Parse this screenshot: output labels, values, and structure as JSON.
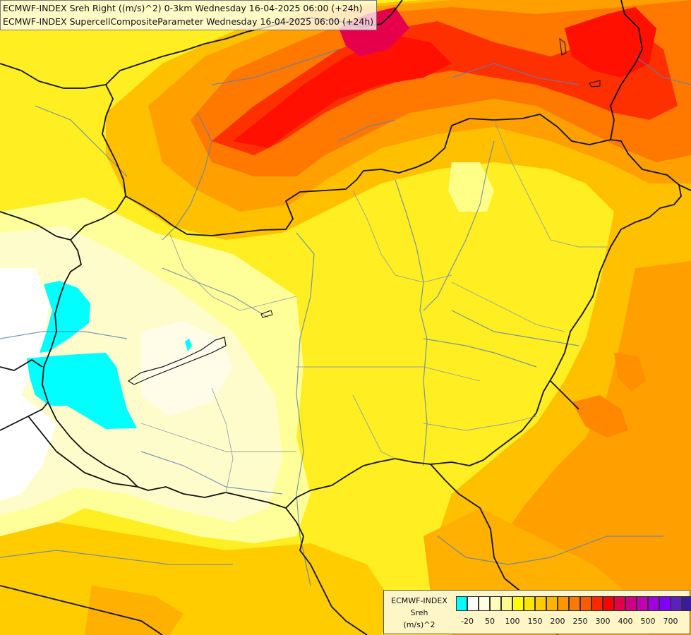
{
  "header": {
    "line1": "ECMWF-INDEX Sreh Right ((m/s)^2) 0-3km Wednesday 16-04-2025 06:00 (+24h)",
    "line2": "ECMWF-INDEX SupercellCompositeParameter Wednesday 16-04-2025 06:00 (+24h)"
  },
  "legend": {
    "model": "ECMWF-INDEX",
    "variable": "Sreh",
    "unit": "(m/s)^2",
    "colors": [
      "#00ffff",
      "#ffffff",
      "#fffde0",
      "#fffbb8",
      "#fff88c",
      "#ffff00",
      "#ffe600",
      "#ffcc00",
      "#ffb400",
      "#ff9600",
      "#ff7800",
      "#ff5a00",
      "#ff2800",
      "#ff0000",
      "#e6004c",
      "#cc0080",
      "#c000b0",
      "#a000e0",
      "#8000ff",
      "#5a20c0",
      "#3a1a9a",
      "#0a0a60"
    ],
    "ticks": [
      {
        "label": "-20",
        "index": 0
      },
      {
        "label": "50",
        "index": 2
      },
      {
        "label": "100",
        "index": 4
      },
      {
        "label": "150",
        "index": 6
      },
      {
        "label": "200",
        "index": 8
      },
      {
        "label": "250",
        "index": 10
      },
      {
        "label": "300",
        "index": 12
      },
      {
        "label": "400",
        "index": 14
      },
      {
        "label": "500",
        "index": 16
      },
      {
        "label": "700",
        "index": 18
      }
    ]
  }
}
